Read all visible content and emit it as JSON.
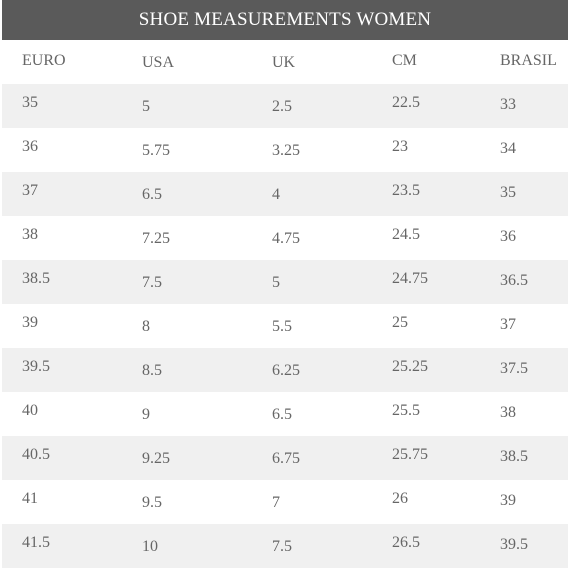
{
  "title": "SHOE MEASUREMENTS WOMEN",
  "columns": [
    "EURO",
    "USA",
    "UK",
    "CM",
    "BRASIL"
  ],
  "rows": [
    [
      "35",
      "5",
      "2.5",
      "22.5",
      "33"
    ],
    [
      "36",
      "5.75",
      "3.25",
      "23",
      "34"
    ],
    [
      "37",
      "6.5",
      "4",
      "23.5",
      "35"
    ],
    [
      "38",
      "7.25",
      "4.75",
      "24.5",
      "36"
    ],
    [
      "38.5",
      "7.5",
      "5",
      "24.75",
      "36.5"
    ],
    [
      "39",
      "8",
      "5.5",
      "25",
      "37"
    ],
    [
      "39.5",
      "8.5",
      "6.25",
      "25.25",
      "37.5"
    ],
    [
      "40",
      "9",
      "6.5",
      "25.5",
      "38"
    ],
    [
      "40.5",
      "9.25",
      "6.75",
      "25.75",
      "38.5"
    ],
    [
      "41",
      "9.5",
      "7",
      "26",
      "39"
    ],
    [
      "41.5",
      "10",
      "7.5",
      "26.5",
      "39.5"
    ]
  ],
  "colors": {
    "title_bg": "#5a5a5a",
    "title_text": "#ffffff",
    "stripe": "#f0f0f0",
    "text": "#666666"
  }
}
